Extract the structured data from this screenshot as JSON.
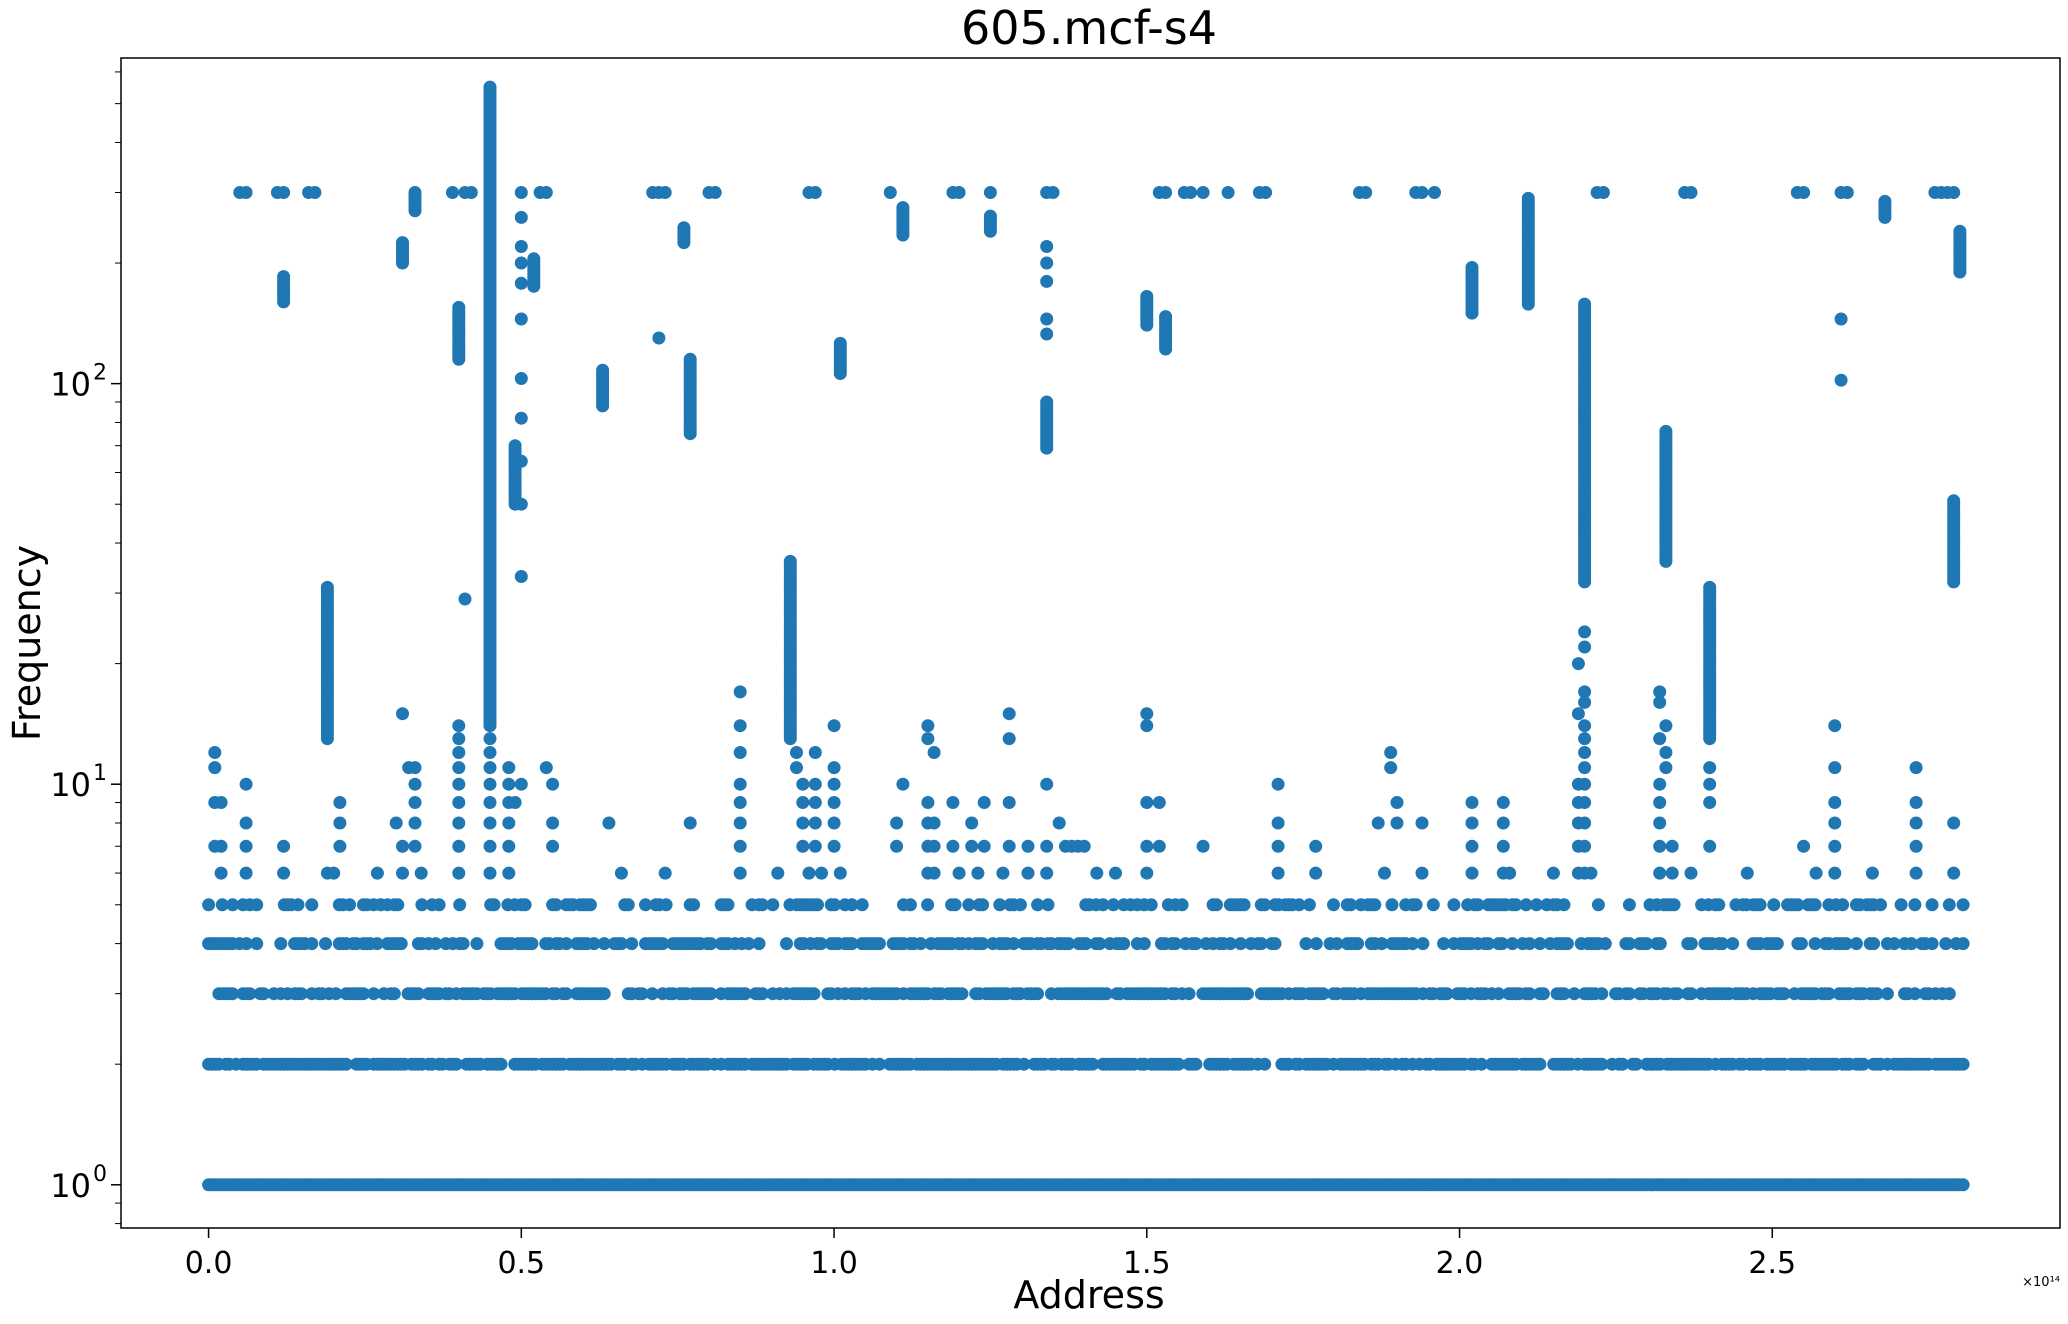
{
  "chart_data": {
    "type": "scatter",
    "title": "605.mcf-s4",
    "xlabel": "Address",
    "ylabel": "Frequency",
    "x_offset_label": "×10¹⁴",
    "xscale": "linear",
    "yscale": "log",
    "xlim": [
      -0.14,
      2.96
    ],
    "ylim": [
      0.78,
      650
    ],
    "x_ticks": [
      {
        "value": 0.0,
        "label": "0.0"
      },
      {
        "value": 0.5,
        "label": "0.5"
      },
      {
        "value": 1.0,
        "label": "1.0"
      },
      {
        "value": 1.5,
        "label": "1.5"
      },
      {
        "value": 2.0,
        "label": "2.0"
      },
      {
        "value": 2.5,
        "label": "2.5"
      }
    ],
    "y_ticks": [
      {
        "value": 1,
        "base": "10",
        "exp": "0"
      },
      {
        "value": 10,
        "base": "10",
        "exp": "1"
      },
      {
        "value": 100,
        "base": "10",
        "exp": "2"
      }
    ],
    "grid": false,
    "legend": "none",
    "color": "#1f77b4",
    "x_data_extent": [
      0.0,
      2.81
    ],
    "rows": [
      {
        "y": 1,
        "x_start": 0.0,
        "x_end": 2.81,
        "density": 1.0
      },
      {
        "y": 2,
        "x_start": 0.0,
        "x_end": 2.81,
        "density": 0.8
      },
      {
        "y": 3,
        "x_start": 0.0,
        "x_end": 2.81,
        "density": 0.65
      },
      {
        "y": 4,
        "x_start": 0.0,
        "x_end": 2.81,
        "density": 0.5
      },
      {
        "y": 5,
        "x_start": 0.0,
        "x_end": 2.81,
        "density": 0.35
      }
    ],
    "points": [
      [
        0.01,
        12
      ],
      [
        0.01,
        11
      ],
      [
        0.01,
        9
      ],
      [
        0.02,
        9
      ],
      [
        0.01,
        7
      ],
      [
        0.02,
        7
      ],
      [
        0.02,
        6
      ],
      [
        0.06,
        10
      ],
      [
        0.06,
        8
      ],
      [
        0.06,
        7
      ],
      [
        0.06,
        6
      ],
      [
        0.12,
        7
      ],
      [
        0.12,
        6
      ],
      [
        0.19,
        6
      ],
      [
        0.2,
        6
      ],
      [
        0.21,
        9
      ],
      [
        0.21,
        8
      ],
      [
        0.21,
        7
      ],
      [
        0.27,
        6
      ],
      [
        0.3,
        8
      ],
      [
        0.31,
        15
      ],
      [
        0.31,
        7
      ],
      [
        0.31,
        6
      ],
      [
        0.32,
        11
      ],
      [
        0.33,
        11
      ],
      [
        0.33,
        10
      ],
      [
        0.33,
        9
      ],
      [
        0.33,
        8
      ],
      [
        0.33,
        7
      ],
      [
        0.34,
        6
      ],
      [
        0.4,
        14
      ],
      [
        0.4,
        13
      ],
      [
        0.4,
        12
      ],
      [
        0.4,
        11
      ],
      [
        0.4,
        10
      ],
      [
        0.4,
        9
      ],
      [
        0.4,
        8
      ],
      [
        0.4,
        7
      ],
      [
        0.4,
        6
      ],
      [
        0.41,
        29
      ],
      [
        0.45,
        13
      ],
      [
        0.45,
        12
      ],
      [
        0.45,
        11
      ],
      [
        0.45,
        10
      ],
      [
        0.45,
        9
      ],
      [
        0.45,
        8
      ],
      [
        0.45,
        7
      ],
      [
        0.45,
        6
      ],
      [
        0.48,
        11
      ],
      [
        0.48,
        10
      ],
      [
        0.48,
        9
      ],
      [
        0.48,
        8
      ],
      [
        0.48,
        7
      ],
      [
        0.48,
        6
      ],
      [
        0.49,
        9
      ],
      [
        0.5,
        10
      ],
      [
        0.5,
        33
      ],
      [
        0.5,
        50
      ],
      [
        0.5,
        64
      ],
      [
        0.5,
        82
      ],
      [
        0.5,
        103
      ],
      [
        0.5,
        145
      ],
      [
        0.5,
        178
      ],
      [
        0.5,
        200
      ],
      [
        0.5,
        220
      ],
      [
        0.5,
        260
      ],
      [
        0.5,
        300
      ],
      [
        0.54,
        11
      ],
      [
        0.55,
        10
      ],
      [
        0.55,
        8
      ],
      [
        0.55,
        7
      ],
      [
        0.64,
        8
      ],
      [
        0.66,
        6
      ],
      [
        0.72,
        130
      ],
      [
        0.73,
        6
      ],
      [
        0.77,
        8
      ],
      [
        0.85,
        17
      ],
      [
        0.85,
        14
      ],
      [
        0.85,
        12
      ],
      [
        0.85,
        10
      ],
      [
        0.85,
        9
      ],
      [
        0.85,
        8
      ],
      [
        0.85,
        7
      ],
      [
        0.85,
        6
      ],
      [
        0.91,
        6
      ],
      [
        0.94,
        12
      ],
      [
        0.94,
        11
      ],
      [
        0.95,
        10
      ],
      [
        0.95,
        9
      ],
      [
        0.95,
        8
      ],
      [
        0.95,
        7
      ],
      [
        0.96,
        6
      ],
      [
        0.97,
        12
      ],
      [
        0.97,
        10
      ],
      [
        0.97,
        9
      ],
      [
        0.97,
        8
      ],
      [
        0.97,
        7
      ],
      [
        0.98,
        6
      ],
      [
        1.0,
        14
      ],
      [
        1.0,
        11
      ],
      [
        1.0,
        10
      ],
      [
        1.0,
        9
      ],
      [
        1.0,
        8
      ],
      [
        1.0,
        7
      ],
      [
        1.01,
        6
      ],
      [
        1.1,
        8
      ],
      [
        1.1,
        7
      ],
      [
        1.11,
        10
      ],
      [
        1.15,
        14
      ],
      [
        1.15,
        13
      ],
      [
        1.15,
        9
      ],
      [
        1.15,
        8
      ],
      [
        1.15,
        7
      ],
      [
        1.15,
        6
      ],
      [
        1.16,
        12
      ],
      [
        1.16,
        8
      ],
      [
        1.16,
        7
      ],
      [
        1.16,
        6
      ],
      [
        1.19,
        9
      ],
      [
        1.19,
        7
      ],
      [
        1.2,
        6
      ],
      [
        1.22,
        8
      ],
      [
        1.22,
        7
      ],
      [
        1.23,
        6
      ],
      [
        1.24,
        9
      ],
      [
        1.24,
        7
      ],
      [
        1.27,
        6
      ],
      [
        1.28,
        15
      ],
      [
        1.28,
        13
      ],
      [
        1.28,
        9
      ],
      [
        1.28,
        7
      ],
      [
        1.31,
        7
      ],
      [
        1.31,
        6
      ],
      [
        1.34,
        10
      ],
      [
        1.34,
        7
      ],
      [
        1.34,
        6
      ],
      [
        1.36,
        8
      ],
      [
        1.37,
        7
      ],
      [
        1.38,
        7
      ],
      [
        1.39,
        7
      ],
      [
        1.4,
        7
      ],
      [
        1.42,
        6
      ],
      [
        1.45,
        6
      ],
      [
        1.5,
        15
      ],
      [
        1.5,
        14
      ],
      [
        1.5,
        9
      ],
      [
        1.5,
        7
      ],
      [
        1.5,
        6
      ],
      [
        1.52,
        9
      ],
      [
        1.52,
        7
      ],
      [
        1.59,
        7
      ],
      [
        1.71,
        10
      ],
      [
        1.71,
        8
      ],
      [
        1.71,
        7
      ],
      [
        1.71,
        6
      ],
      [
        1.77,
        7
      ],
      [
        1.77,
        6
      ],
      [
        1.87,
        8
      ],
      [
        1.88,
        6
      ],
      [
        1.89,
        12
      ],
      [
        1.89,
        11
      ],
      [
        1.9,
        9
      ],
      [
        1.9,
        8
      ],
      [
        1.94,
        8
      ],
      [
        1.94,
        6
      ],
      [
        2.02,
        9
      ],
      [
        2.02,
        8
      ],
      [
        2.02,
        7
      ],
      [
        2.02,
        6
      ],
      [
        2.07,
        9
      ],
      [
        2.07,
        8
      ],
      [
        2.07,
        7
      ],
      [
        2.07,
        6
      ],
      [
        2.08,
        6
      ],
      [
        2.15,
        6
      ],
      [
        2.19,
        20
      ],
      [
        2.19,
        15
      ],
      [
        2.19,
        10
      ],
      [
        2.19,
        9
      ],
      [
        2.19,
        8
      ],
      [
        2.19,
        7
      ],
      [
        2.19,
        6
      ],
      [
        2.2,
        24
      ],
      [
        2.2,
        22
      ],
      [
        2.2,
        17
      ],
      [
        2.2,
        16
      ],
      [
        2.2,
        14
      ],
      [
        2.2,
        13
      ],
      [
        2.2,
        12
      ],
      [
        2.2,
        11
      ],
      [
        2.2,
        10
      ],
      [
        2.2,
        9
      ],
      [
        2.2,
        8
      ],
      [
        2.2,
        7
      ],
      [
        2.2,
        6
      ],
      [
        2.21,
        6
      ],
      [
        2.32,
        17
      ],
      [
        2.32,
        16
      ],
      [
        2.32,
        13
      ],
      [
        2.32,
        10
      ],
      [
        2.32,
        9
      ],
      [
        2.32,
        8
      ],
      [
        2.32,
        7
      ],
      [
        2.32,
        6
      ],
      [
        2.33,
        14
      ],
      [
        2.33,
        12
      ],
      [
        2.33,
        11
      ],
      [
        2.34,
        7
      ],
      [
        2.34,
        6
      ],
      [
        2.37,
        6
      ],
      [
        2.4,
        10
      ],
      [
        2.4,
        11
      ],
      [
        2.4,
        9
      ],
      [
        2.4,
        7
      ],
      [
        2.46,
        6
      ],
      [
        2.55,
        7
      ],
      [
        2.57,
        6
      ],
      [
        2.6,
        14
      ],
      [
        2.6,
        11
      ],
      [
        2.6,
        9
      ],
      [
        2.6,
        8
      ],
      [
        2.6,
        7
      ],
      [
        2.6,
        6
      ],
      [
        2.66,
        6
      ],
      [
        2.73,
        11
      ],
      [
        2.73,
        9
      ],
      [
        2.73,
        8
      ],
      [
        2.73,
        7
      ],
      [
        2.73,
        6
      ],
      [
        2.79,
        8
      ],
      [
        2.79,
        6
      ],
      [
        0.05,
        300
      ],
      [
        0.06,
        300
      ],
      [
        0.11,
        300
      ],
      [
        0.12,
        300
      ],
      [
        0.16,
        300
      ],
      [
        0.17,
        300
      ],
      [
        0.39,
        300
      ],
      [
        0.41,
        300
      ],
      [
        0.42,
        300
      ],
      [
        0.53,
        300
      ],
      [
        0.54,
        300
      ],
      [
        0.71,
        300
      ],
      [
        0.72,
        300
      ],
      [
        0.73,
        300
      ],
      [
        0.8,
        300
      ],
      [
        0.81,
        300
      ],
      [
        0.96,
        300
      ],
      [
        0.97,
        300
      ],
      [
        1.09,
        300
      ],
      [
        1.19,
        300
      ],
      [
        1.2,
        300
      ],
      [
        1.25,
        300
      ],
      [
        1.34,
        300
      ],
      [
        1.35,
        300
      ],
      [
        1.52,
        300
      ],
      [
        1.53,
        300
      ],
      [
        1.56,
        300
      ],
      [
        1.57,
        300
      ],
      [
        1.59,
        300
      ],
      [
        1.63,
        300
      ],
      [
        1.68,
        300
      ],
      [
        1.69,
        300
      ],
      [
        1.84,
        300
      ],
      [
        1.85,
        300
      ],
      [
        1.93,
        300
      ],
      [
        1.94,
        300
      ],
      [
        1.96,
        300
      ],
      [
        2.22,
        300
      ],
      [
        2.23,
        300
      ],
      [
        2.36,
        300
      ],
      [
        2.37,
        300
      ],
      [
        2.54,
        300
      ],
      [
        2.55,
        300
      ],
      [
        2.61,
        300
      ],
      [
        2.62,
        300
      ],
      [
        2.76,
        300
      ],
      [
        2.77,
        300
      ],
      [
        2.78,
        300
      ],
      [
        2.79,
        300
      ],
      [
        2.61,
        145
      ],
      [
        2.61,
        102
      ],
      [
        1.34,
        220
      ],
      [
        1.34,
        200
      ],
      [
        1.34,
        180
      ],
      [
        1.34,
        145
      ],
      [
        1.34,
        133
      ]
    ],
    "columns": [
      {
        "x": 0.12,
        "y_min": 160,
        "y_max": 185
      },
      {
        "x": 0.19,
        "y_min": 13,
        "y_max": 31
      },
      {
        "x": 0.31,
        "y_min": 200,
        "y_max": 225
      },
      {
        "x": 0.33,
        "y_min": 270,
        "y_max": 300
      },
      {
        "x": 0.4,
        "y_min": 115,
        "y_max": 155
      },
      {
        "x": 0.45,
        "y_min": 14,
        "y_max": 550
      },
      {
        "x": 0.49,
        "y_min": 50,
        "y_max": 70
      },
      {
        "x": 0.52,
        "y_min": 175,
        "y_max": 205
      },
      {
        "x": 0.63,
        "y_min": 88,
        "y_max": 108
      },
      {
        "x": 0.76,
        "y_min": 225,
        "y_max": 245
      },
      {
        "x": 0.77,
        "y_min": 75,
        "y_max": 115
      },
      {
        "x": 0.93,
        "y_min": 13,
        "y_max": 36
      },
      {
        "x": 1.01,
        "y_min": 106,
        "y_max": 126
      },
      {
        "x": 1.11,
        "y_min": 235,
        "y_max": 275
      },
      {
        "x": 1.25,
        "y_min": 240,
        "y_max": 262
      },
      {
        "x": 1.34,
        "y_min": 69,
        "y_max": 90
      },
      {
        "x": 1.5,
        "y_min": 140,
        "y_max": 165
      },
      {
        "x": 1.53,
        "y_min": 122,
        "y_max": 147
      },
      {
        "x": 2.02,
        "y_min": 150,
        "y_max": 195
      },
      {
        "x": 2.11,
        "y_min": 158,
        "y_max": 290
      },
      {
        "x": 2.2,
        "y_min": 32,
        "y_max": 158
      },
      {
        "x": 2.33,
        "y_min": 36,
        "y_max": 76
      },
      {
        "x": 2.4,
        "y_min": 13,
        "y_max": 31
      },
      {
        "x": 2.68,
        "y_min": 260,
        "y_max": 285
      },
      {
        "x": 2.79,
        "y_min": 32,
        "y_max": 51
      },
      {
        "x": 2.8,
        "y_min": 190,
        "y_max": 240
      }
    ]
  }
}
